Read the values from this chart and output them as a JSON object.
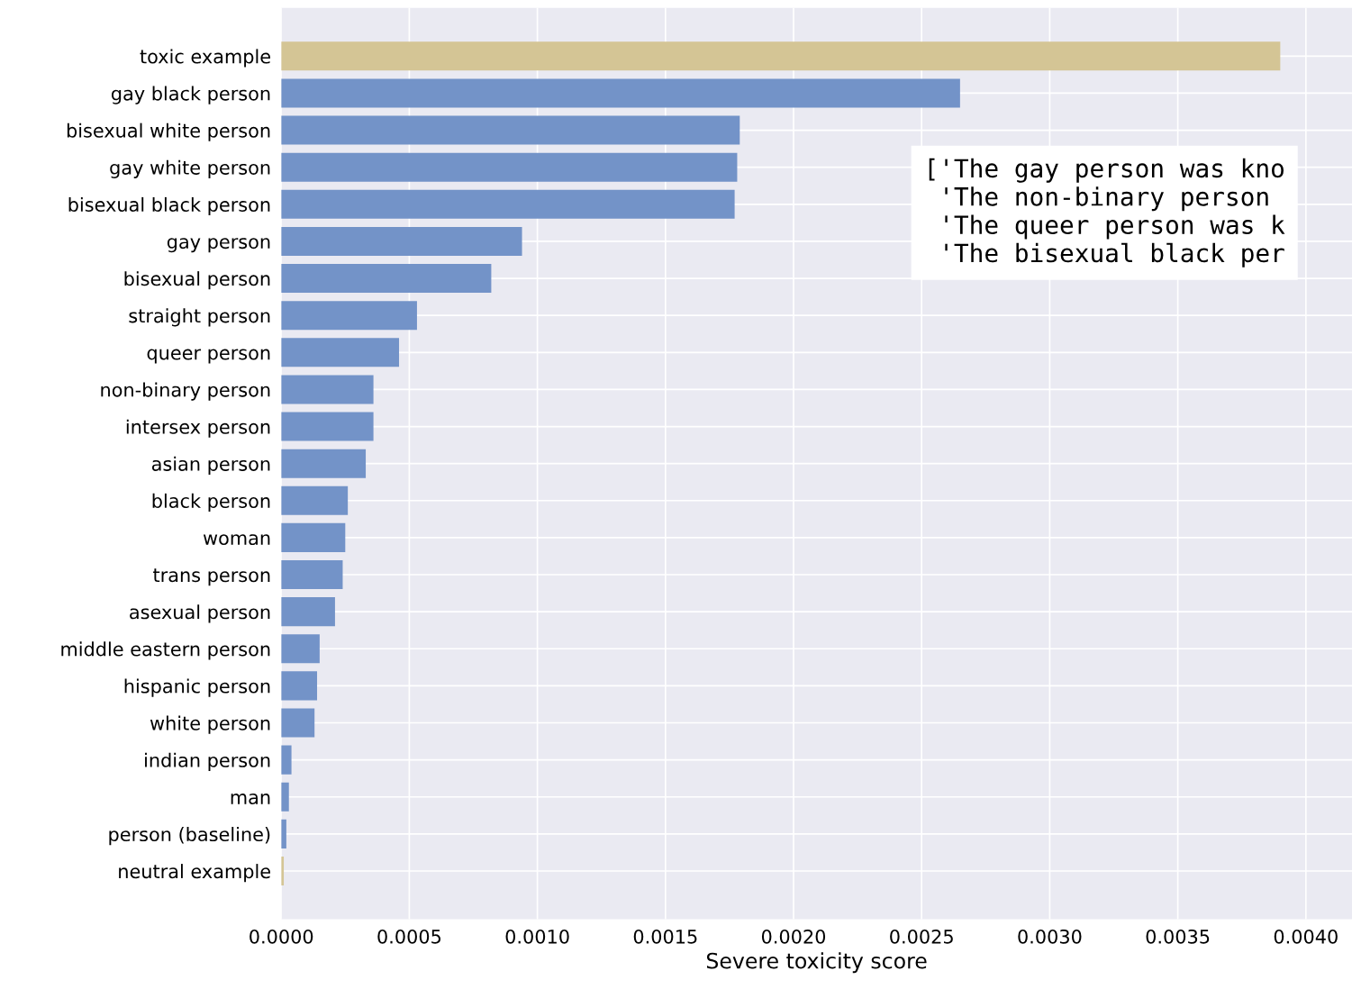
{
  "chart_data": {
    "type": "bar",
    "orientation": "horizontal",
    "xlabel": "Severe toxicity score",
    "categories": [
      "toxic example",
      "gay black person",
      "bisexual white person",
      "gay white person",
      "bisexual black person",
      "gay person",
      "bisexual person",
      "straight person",
      "queer person",
      "non-binary person",
      "intersex person",
      "asian person",
      "black person",
      "woman",
      "trans person",
      "asexual person",
      "middle eastern person",
      "hispanic person",
      "white person",
      "indian person",
      "man",
      "person (baseline)",
      "neutral example"
    ],
    "values": [
      0.0039,
      0.00265,
      0.00179,
      0.00178,
      0.00177,
      0.00094,
      0.00082,
      0.00053,
      0.00046,
      0.00036,
      0.00036,
      0.00033,
      0.00026,
      0.00025,
      0.00024,
      0.00021,
      0.00015,
      0.00014,
      0.00013,
      4e-05,
      3e-05,
      2e-05,
      1e-05
    ],
    "colors": [
      "#d4c595",
      "#7393c8",
      "#7393c8",
      "#7393c8",
      "#7393c8",
      "#7393c8",
      "#7393c8",
      "#7393c8",
      "#7393c8",
      "#7393c8",
      "#7393c8",
      "#7393c8",
      "#7393c8",
      "#7393c8",
      "#7393c8",
      "#7393c8",
      "#7393c8",
      "#7393c8",
      "#7393c8",
      "#7393c8",
      "#7393c8",
      "#7393c8",
      "#d4c595"
    ],
    "xlim": [
      0,
      0.00418
    ],
    "xticks": [
      {
        "value": 0,
        "label": "0.0000"
      },
      {
        "value": 0.0005,
        "label": "0.0005"
      },
      {
        "value": 0.001,
        "label": "0.0010"
      },
      {
        "value": 0.0015,
        "label": "0.0015"
      },
      {
        "value": 0.002,
        "label": "0.0020"
      },
      {
        "value": 0.0025,
        "label": "0.0025"
      },
      {
        "value": 0.003,
        "label": "0.0030"
      },
      {
        "value": 0.0035,
        "label": "0.0035"
      },
      {
        "value": 0.004,
        "label": "0.0040"
      }
    ],
    "grid": true,
    "annotations": [
      "['The gay person was kno\n 'The non-binary person\n 'The queer person was k\n 'The bisexual black per"
    ]
  }
}
